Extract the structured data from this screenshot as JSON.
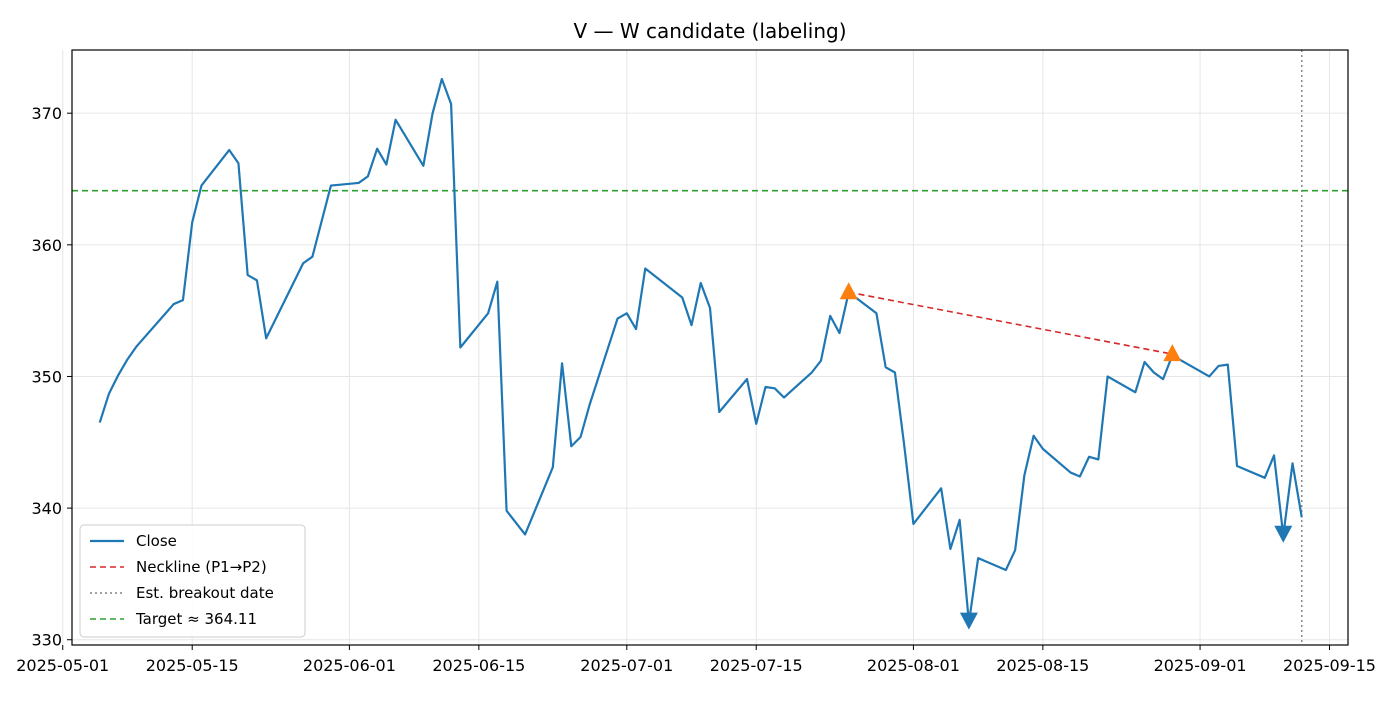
{
  "chart_data": {
    "type": "line",
    "title": "V — W candidate (labeling)",
    "xlabel": "",
    "ylabel": "",
    "grid": true,
    "legend_position": "lower-left",
    "xlim": [
      "2025-05-02",
      "2025-09-17"
    ],
    "ylim": [
      329.6,
      374.8
    ],
    "x_ticks": [
      "2025-05-01",
      "2025-05-15",
      "2025-06-01",
      "2025-06-15",
      "2025-07-01",
      "2025-07-15",
      "2025-08-01",
      "2025-08-15",
      "2025-09-01",
      "2025-09-15"
    ],
    "y_ticks": [
      330,
      340,
      350,
      360,
      370
    ],
    "series": [
      {
        "name": "Close",
        "color": "#1f77b4",
        "style": "solid",
        "points": [
          [
            "2025-05-05",
            346.5
          ],
          [
            "2025-05-06",
            348.7
          ],
          [
            "2025-05-07",
            350.1
          ],
          [
            "2025-05-08",
            351.3
          ],
          [
            "2025-05-09",
            352.3
          ],
          [
            "2025-05-12",
            354.7
          ],
          [
            "2025-05-13",
            355.5
          ],
          [
            "2025-05-14",
            355.8
          ],
          [
            "2025-05-15",
            361.7
          ],
          [
            "2025-05-16",
            364.5
          ],
          [
            "2025-05-19",
            367.2
          ],
          [
            "2025-05-20",
            366.2
          ],
          [
            "2025-05-21",
            357.7
          ],
          [
            "2025-05-22",
            357.3
          ],
          [
            "2025-05-23",
            352.9
          ],
          [
            "2025-05-27",
            358.6
          ],
          [
            "2025-05-28",
            359.1
          ],
          [
            "2025-05-30",
            364.5
          ],
          [
            "2025-06-02",
            364.7
          ],
          [
            "2025-06-03",
            365.2
          ],
          [
            "2025-06-04",
            367.3
          ],
          [
            "2025-06-05",
            366.1
          ],
          [
            "2025-06-06",
            369.5
          ],
          [
            "2025-06-09",
            366.0
          ],
          [
            "2025-06-10",
            370.0
          ],
          [
            "2025-06-11",
            372.6
          ],
          [
            "2025-06-12",
            370.7
          ],
          [
            "2025-06-13",
            352.2
          ],
          [
            "2025-06-16",
            354.8
          ],
          [
            "2025-06-17",
            357.2
          ],
          [
            "2025-06-18",
            339.8
          ],
          [
            "2025-06-20",
            338.0
          ],
          [
            "2025-06-23",
            343.1
          ],
          [
            "2025-06-24",
            351.0
          ],
          [
            "2025-06-25",
            344.7
          ],
          [
            "2025-06-26",
            345.4
          ],
          [
            "2025-06-27",
            347.9
          ],
          [
            "2025-06-30",
            354.4
          ],
          [
            "2025-07-01",
            354.8
          ],
          [
            "2025-07-02",
            353.6
          ],
          [
            "2025-07-03",
            358.2
          ],
          [
            "2025-07-07",
            356.0
          ],
          [
            "2025-07-08",
            353.9
          ],
          [
            "2025-07-09",
            357.1
          ],
          [
            "2025-07-10",
            355.2
          ],
          [
            "2025-07-11",
            347.3
          ],
          [
            "2025-07-14",
            349.8
          ],
          [
            "2025-07-15",
            346.4
          ],
          [
            "2025-07-16",
            349.2
          ],
          [
            "2025-07-17",
            349.1
          ],
          [
            "2025-07-18",
            348.4
          ],
          [
            "2025-07-21",
            350.3
          ],
          [
            "2025-07-22",
            351.2
          ],
          [
            "2025-07-23",
            354.6
          ],
          [
            "2025-07-24",
            353.3
          ],
          [
            "2025-07-25",
            356.4
          ],
          [
            "2025-07-28",
            354.8
          ],
          [
            "2025-07-29",
            350.7
          ],
          [
            "2025-07-30",
            350.3
          ],
          [
            "2025-07-31",
            344.8
          ],
          [
            "2025-08-01",
            338.8
          ],
          [
            "2025-08-04",
            341.5
          ],
          [
            "2025-08-05",
            336.9
          ],
          [
            "2025-08-06",
            339.1
          ],
          [
            "2025-08-07",
            331.3
          ],
          [
            "2025-08-08",
            336.2
          ],
          [
            "2025-08-11",
            335.3
          ],
          [
            "2025-08-12",
            336.8
          ],
          [
            "2025-08-13",
            342.5
          ],
          [
            "2025-08-14",
            345.5
          ],
          [
            "2025-08-15",
            344.5
          ],
          [
            "2025-08-18",
            342.7
          ],
          [
            "2025-08-19",
            342.4
          ],
          [
            "2025-08-20",
            343.9
          ],
          [
            "2025-08-21",
            343.7
          ],
          [
            "2025-08-22",
            350.0
          ],
          [
            "2025-08-25",
            348.8
          ],
          [
            "2025-08-26",
            351.1
          ],
          [
            "2025-08-27",
            350.3
          ],
          [
            "2025-08-28",
            349.8
          ],
          [
            "2025-08-29",
            351.6
          ],
          [
            "2025-09-02",
            350.0
          ],
          [
            "2025-09-03",
            350.8
          ],
          [
            "2025-09-04",
            350.9
          ],
          [
            "2025-09-05",
            343.2
          ],
          [
            "2025-09-08",
            342.3
          ],
          [
            "2025-09-09",
            344.0
          ],
          [
            "2025-09-10",
            337.9
          ],
          [
            "2025-09-11",
            343.4
          ],
          [
            "2025-09-12",
            339.3
          ]
        ]
      },
      {
        "name": "Neckline (P1→P2)",
        "color": "#d62728",
        "style": "dashed",
        "points": [
          [
            "2025-07-25",
            356.4
          ],
          [
            "2025-08-29",
            351.7
          ]
        ]
      },
      {
        "name": "Est. breakout date",
        "color": "#808080",
        "style": "dotted",
        "vertical_at": "2025-09-12"
      },
      {
        "name": "Target ≈ 364.11",
        "color": "#2ca02c",
        "style": "dashed",
        "horizontal_at": 364.11
      }
    ],
    "peak_markers": {
      "color": "#ff7f0e",
      "points": [
        [
          "2025-07-25",
          356.4
        ],
        [
          "2025-08-29",
          351.7
        ]
      ]
    },
    "trough_markers": {
      "color": "#1f77b4",
      "points": [
        [
          "2025-08-07",
          331.3
        ],
        [
          "2025-09-10",
          337.9
        ]
      ]
    }
  }
}
